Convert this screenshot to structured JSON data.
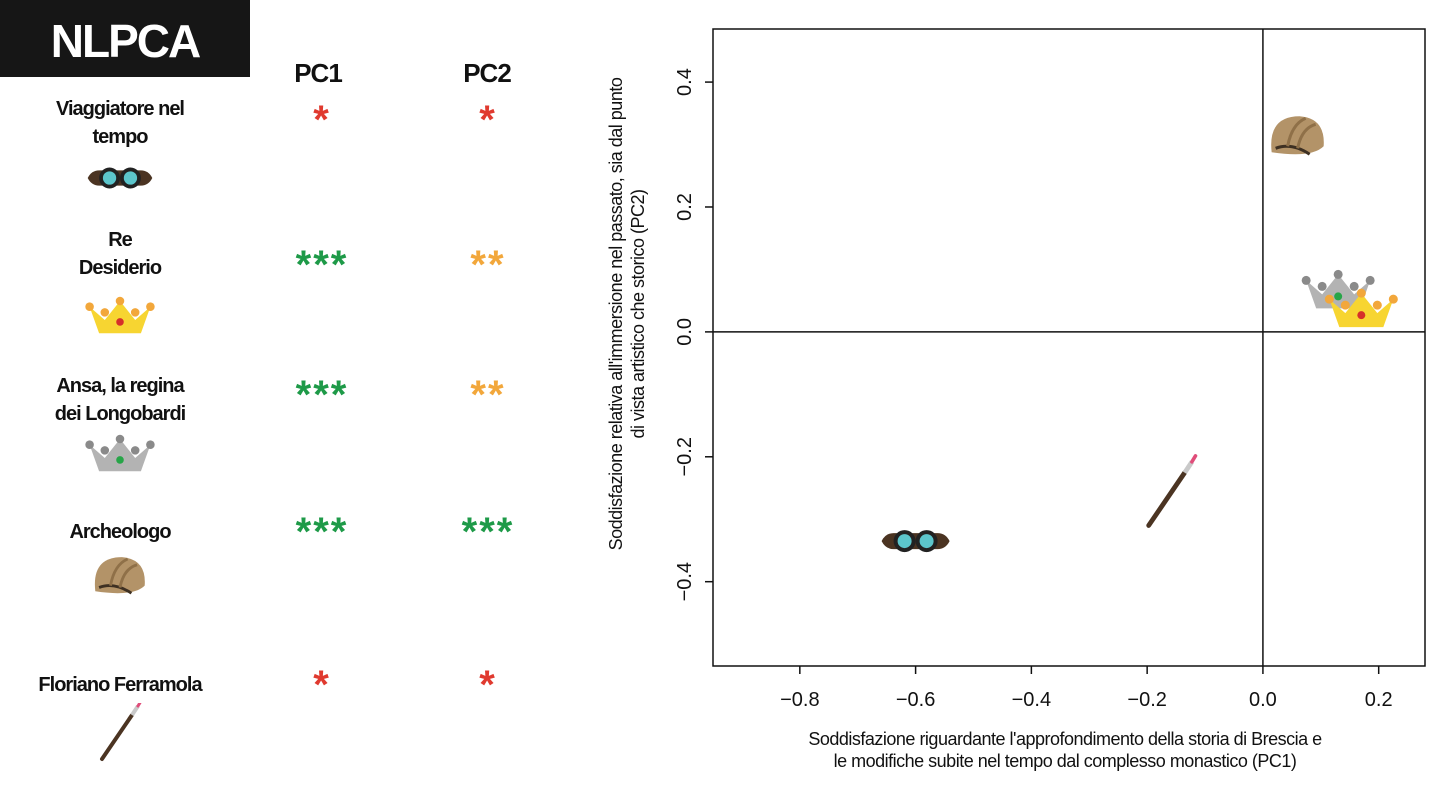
{
  "header": {
    "title": "NLPCA",
    "col_pc1": "PC1",
    "col_pc2": "PC2"
  },
  "rows": [
    {
      "label_lines": [
        "Viaggiatore nel",
        "tempo"
      ],
      "icon": "goggles-icon",
      "pc1": "*",
      "pc1_color": "#e03a2f",
      "pc2": "*",
      "pc2_color": "#e03a2f"
    },
    {
      "label_lines": [
        "Re",
        "Desiderio"
      ],
      "icon": "gold-crown-icon",
      "pc1": "***",
      "pc1_color": "#1e9a48",
      "pc2": "**",
      "pc2_color": "#f2a73b"
    },
    {
      "label_lines": [
        "Ansa, la regina",
        "dei Longobardi"
      ],
      "icon": "silver-crown-icon",
      "pc1": "***",
      "pc1_color": "#1e9a48",
      "pc2": "**",
      "pc2_color": "#f2a73b"
    },
    {
      "label_lines": [
        "Archeologo"
      ],
      "icon": "helmet-icon",
      "pc1": "***",
      "pc1_color": "#1e9a48",
      "pc2": "***",
      "pc2_color": "#1e9a48"
    },
    {
      "label_lines": [
        "Floriano Ferramola"
      ],
      "icon": "paintbrush-icon",
      "pc1": "*",
      "pc1_color": "#e03a2f",
      "pc2": "*",
      "pc2_color": "#e03a2f"
    }
  ],
  "chart_data": {
    "type": "scatter",
    "xlabel_lines": [
      "Soddisfazione riguardante l'approfondimento della storia di Brescia e",
      "le modifiche subite nel tempo dal complesso monastico (PC1)"
    ],
    "ylabel_lines": [
      "Soddisfazione relativa all'immersione nel passato, sia dal punto",
      "di vista artistico che storico (PC2)"
    ],
    "xlim": [
      -0.95,
      0.28
    ],
    "ylim": [
      -0.535,
      0.485
    ],
    "xticks": [
      -0.8,
      -0.6,
      -0.4,
      -0.2,
      0.0,
      0.2
    ],
    "xtick_labels": [
      "−0.8",
      "−0.6",
      "−0.4",
      "−0.2",
      "0.0",
      "0.2"
    ],
    "yticks": [
      -0.4,
      -0.2,
      0.0,
      0.2,
      0.4
    ],
    "ytick_labels": [
      "−0.4",
      "−0.2",
      "0.0",
      "0.2",
      "0.4"
    ],
    "reference_lines": {
      "x": 0,
      "y": 0
    },
    "points": [
      {
        "icon": "goggles-icon",
        "x": -0.6,
        "y": -0.335
      },
      {
        "icon": "paintbrush-icon",
        "x": -0.16,
        "y": -0.26
      },
      {
        "icon": "helmet-icon",
        "x": 0.06,
        "y": 0.31
      },
      {
        "icon": "silver-crown-icon",
        "x": 0.13,
        "y": 0.06
      },
      {
        "icon": "gold-crown-icon",
        "x": 0.17,
        "y": 0.03
      }
    ]
  }
}
